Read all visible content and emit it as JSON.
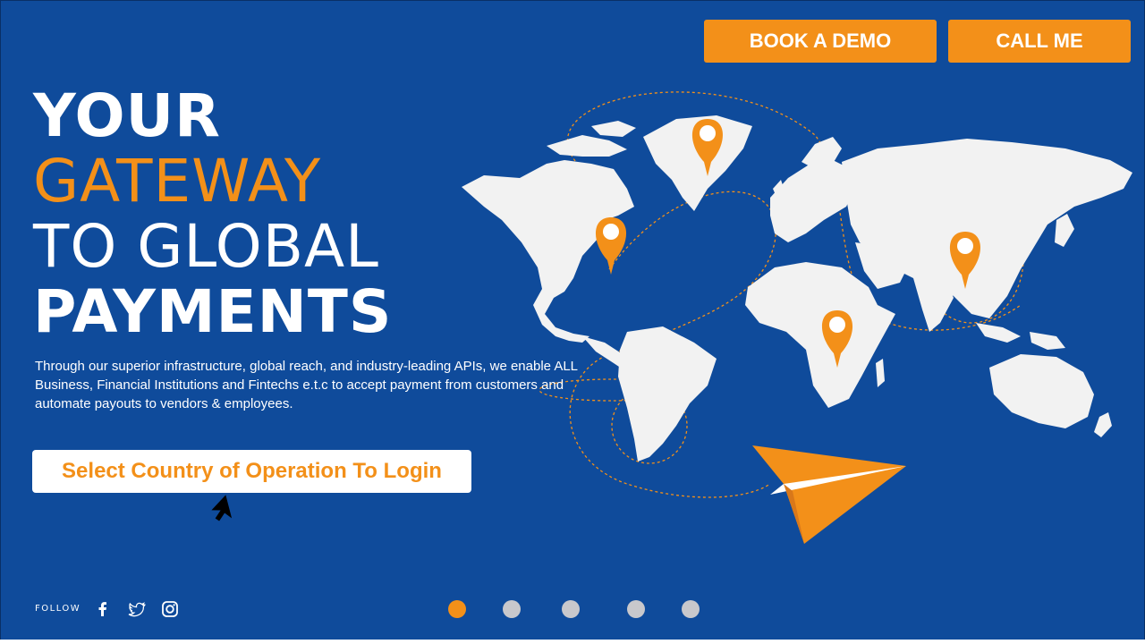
{
  "header": {
    "book_demo_label": "BOOK A DEMO",
    "call_me_label": "CALL ME"
  },
  "hero": {
    "line1": "YOUR",
    "line2": "GATEWAY",
    "line3": "TO GLOBAL",
    "line4": "PAYMENTS",
    "description": "Through our superior infrastructure, global reach, and industry-leading APIs, we enable ALL Business, Financial Institutions and Fintechs e.t.c  to accept payment from customers and automate payouts to vendors & employees.",
    "login_button_label": "Select Country of Operation To Login"
  },
  "footer": {
    "follow_label": "FOLLOW",
    "social_icons": [
      "facebook-icon",
      "twitter-icon",
      "instagram-icon"
    ]
  },
  "carousel": {
    "slide_count": 5,
    "active_index": 0
  },
  "colors": {
    "background": "#0f4b9b",
    "accent": "#f39019",
    "map_land": "#f2f2f2",
    "dot_inactive": "#c8c8cc"
  }
}
